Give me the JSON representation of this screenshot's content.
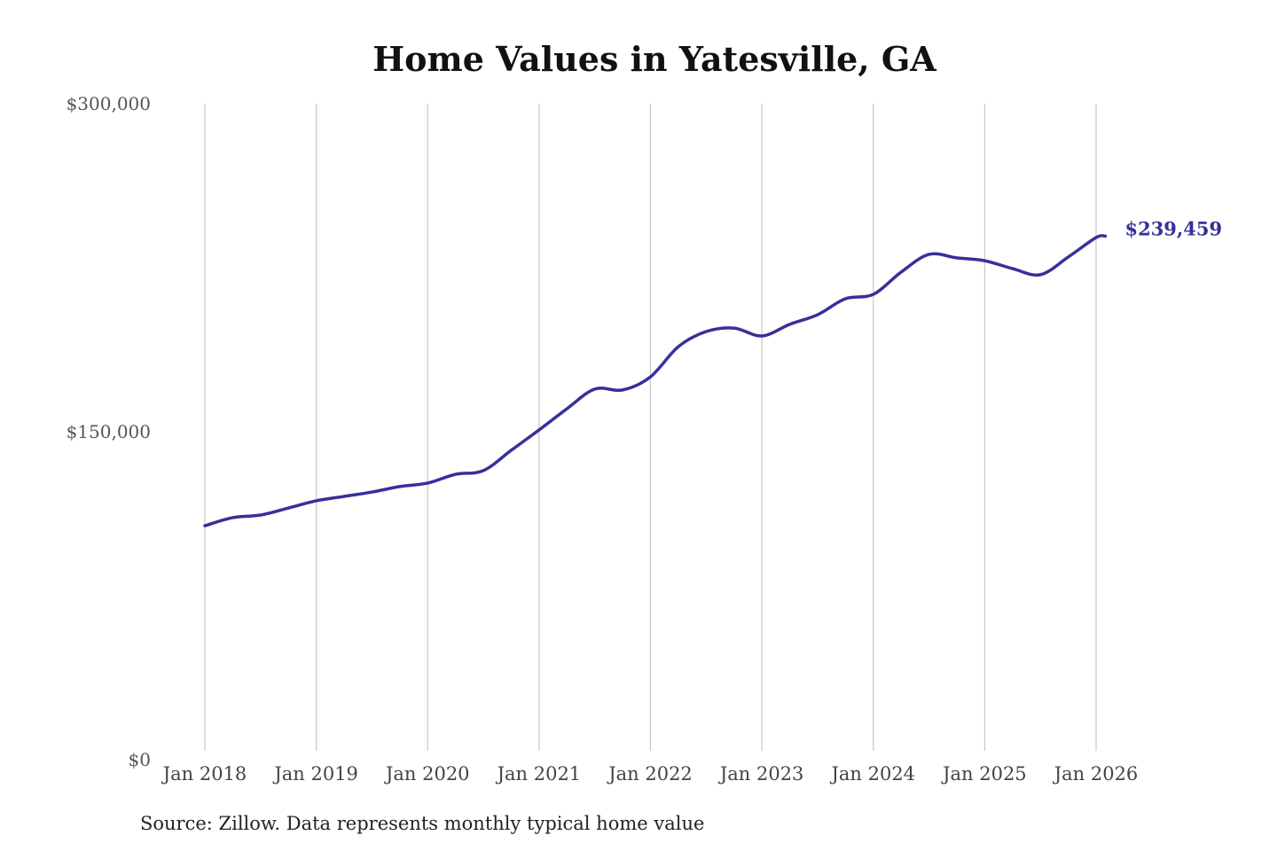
{
  "chart_data": {
    "type": "line",
    "title": "Home Values in Yatesville, GA",
    "source": "Source: Zillow. Data represents monthly typical home value",
    "xlabel": "",
    "ylabel": "",
    "ylim": [
      0,
      300000
    ],
    "yticks": [
      0,
      150000,
      300000
    ],
    "ytick_labels": [
      "$0",
      "$150,000",
      "$300,000"
    ],
    "xticks": [
      "2018-01",
      "2019-01",
      "2020-01",
      "2021-01",
      "2022-01",
      "2023-01",
      "2024-01",
      "2025-01",
      "2026-01"
    ],
    "xtick_labels": [
      "Jan 2018",
      "Jan 2019",
      "Jan 2020",
      "Jan 2021",
      "Jan 2022",
      "Jan 2023",
      "Jan 2024",
      "Jan 2025",
      "Jan 2026"
    ],
    "grid": "vertical",
    "line_color": "#36309a",
    "end_label": "$239,459",
    "x": [
      "2018-01",
      "2018-04",
      "2018-07",
      "2018-10",
      "2019-01",
      "2019-04",
      "2019-07",
      "2019-10",
      "2020-01",
      "2020-04",
      "2020-07",
      "2020-10",
      "2021-01",
      "2021-04",
      "2021-07",
      "2021-10",
      "2022-01",
      "2022-04",
      "2022-07",
      "2022-10",
      "2023-01",
      "2023-04",
      "2023-07",
      "2023-10",
      "2024-01",
      "2024-04",
      "2024-07",
      "2024-10",
      "2025-01",
      "2025-04",
      "2025-07",
      "2025-10",
      "2026-01",
      "2026-02"
    ],
    "values": [
      107000,
      110700,
      111900,
      115100,
      118400,
      120400,
      122400,
      124900,
      126500,
      130500,
      132200,
      141500,
      150800,
      160500,
      169500,
      169100,
      175100,
      188900,
      195800,
      197400,
      193800,
      199100,
      203500,
      210800,
      212800,
      223000,
      231100,
      229500,
      228200,
      224600,
      221800,
      229900,
      238800,
      239459
    ]
  }
}
